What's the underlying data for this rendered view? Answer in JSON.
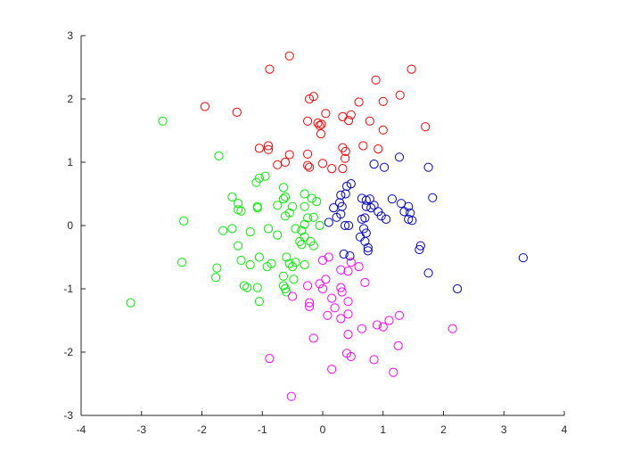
{
  "chart_data": {
    "type": "scatter",
    "title": "",
    "xlabel": "",
    "ylabel": "",
    "xlim": [
      -4,
      4
    ],
    "ylim": [
      -3,
      3
    ],
    "xticks": [
      "-4",
      "-3",
      "-2",
      "-1",
      "0",
      "1",
      "2",
      "3",
      "4"
    ],
    "yticks": [
      "-3",
      "-2",
      "-1",
      "0",
      "1",
      "2",
      "3"
    ],
    "grid": false,
    "legend": "none",
    "marker": "open-circle",
    "series": [
      {
        "color": "#ff0000",
        "points": [
          [
            -0.55,
            2.68
          ],
          [
            -0.88,
            2.47
          ],
          [
            -1.95,
            1.88
          ],
          [
            -1.42,
            1.79
          ],
          [
            -0.15,
            2.04
          ],
          [
            -0.22,
            2.0
          ],
          [
            -0.25,
            1.65
          ],
          [
            -0.08,
            1.62
          ],
          [
            -0.05,
            1.58
          ],
          [
            -0.02,
            1.6
          ],
          [
            -0.03,
            1.45
          ],
          [
            0.05,
            1.77
          ],
          [
            0.33,
            1.72
          ],
          [
            0.47,
            1.75
          ],
          [
            0.43,
            1.66
          ],
          [
            0.6,
            1.95
          ],
          [
            0.78,
            1.65
          ],
          [
            0.88,
            2.3
          ],
          [
            1.0,
            1.96
          ],
          [
            1.28,
            2.06
          ],
          [
            1.47,
            2.47
          ],
          [
            1.7,
            1.56
          ],
          [
            1.0,
            1.51
          ],
          [
            0.92,
            1.21
          ],
          [
            0.67,
            1.26
          ],
          [
            0.33,
            1.23
          ],
          [
            0.38,
            1.17
          ],
          [
            0.37,
            1.06
          ],
          [
            0.33,
            0.9
          ],
          [
            0.15,
            0.9
          ],
          [
            0.0,
            0.98
          ],
          [
            -0.25,
            1.13
          ],
          [
            -0.25,
            0.95
          ],
          [
            -0.22,
            0.92
          ],
          [
            -0.55,
            1.12
          ],
          [
            -0.62,
            1.0
          ],
          [
            -0.75,
            0.96
          ],
          [
            -0.9,
            1.26
          ],
          [
            -0.9,
            1.2
          ],
          [
            -1.05,
            1.22
          ]
        ]
      },
      {
        "color": "#00ee00",
        "points": [
          [
            -2.65,
            1.65
          ],
          [
            -1.72,
            1.1
          ],
          [
            -1.05,
            0.75
          ],
          [
            -1.1,
            0.68
          ],
          [
            -0.95,
            0.78
          ],
          [
            -0.65,
            0.6
          ],
          [
            -0.62,
            0.45
          ],
          [
            -0.65,
            0.42
          ],
          [
            -0.3,
            0.5
          ],
          [
            -0.18,
            0.43
          ],
          [
            -0.1,
            0.38
          ],
          [
            -1.5,
            0.45
          ],
          [
            -1.4,
            0.35
          ],
          [
            -1.4,
            0.25
          ],
          [
            -1.35,
            0.23
          ],
          [
            -1.08,
            0.3
          ],
          [
            -1.08,
            0.28
          ],
          [
            -0.75,
            0.32
          ],
          [
            -0.62,
            0.15
          ],
          [
            -0.55,
            0.2
          ],
          [
            -0.5,
            0.3
          ],
          [
            -0.3,
            0.3
          ],
          [
            -0.25,
            0.12
          ],
          [
            -0.15,
            0.13
          ],
          [
            -0.3,
            0.02
          ],
          [
            -0.05,
            0.0
          ],
          [
            -2.3,
            0.07
          ],
          [
            -1.65,
            -0.08
          ],
          [
            -1.5,
            -0.05
          ],
          [
            -1.2,
            -0.1
          ],
          [
            -0.9,
            -0.05
          ],
          [
            -0.75,
            -0.15
          ],
          [
            -0.45,
            -0.05
          ],
          [
            -0.35,
            -0.08
          ],
          [
            -0.3,
            -0.18
          ],
          [
            -0.38,
            -0.25
          ],
          [
            -0.35,
            -0.3
          ],
          [
            -0.2,
            -0.25
          ],
          [
            -0.15,
            -0.32
          ],
          [
            -1.4,
            -0.32
          ],
          [
            -1.05,
            -0.5
          ],
          [
            -1.35,
            -0.55
          ],
          [
            -1.2,
            -0.62
          ],
          [
            -0.92,
            -0.65
          ],
          [
            -0.85,
            -0.6
          ],
          [
            -0.6,
            -0.5
          ],
          [
            -0.55,
            -0.6
          ],
          [
            -0.5,
            -0.65
          ],
          [
            -0.45,
            -0.58
          ],
          [
            -0.3,
            -0.62
          ],
          [
            -2.33,
            -0.58
          ],
          [
            -1.75,
            -0.67
          ],
          [
            -1.77,
            -0.82
          ],
          [
            -0.65,
            -0.8
          ],
          [
            -0.48,
            -0.85
          ],
          [
            -0.65,
            -0.95
          ],
          [
            -0.62,
            -1.0
          ],
          [
            -0.6,
            -1.05
          ],
          [
            -1.3,
            -0.95
          ],
          [
            -1.25,
            -0.98
          ],
          [
            -1.08,
            -0.98
          ],
          [
            -1.05,
            -1.2
          ],
          [
            -3.18,
            -1.22
          ]
        ]
      },
      {
        "color": "#0000cc",
        "points": [
          [
            0.85,
            0.97
          ],
          [
            1.02,
            0.92
          ],
          [
            1.27,
            1.08
          ],
          [
            1.75,
            0.92
          ],
          [
            1.82,
            0.44
          ],
          [
            0.47,
            0.66
          ],
          [
            0.4,
            0.62
          ],
          [
            0.38,
            0.5
          ],
          [
            0.3,
            0.48
          ],
          [
            0.28,
            0.36
          ],
          [
            0.32,
            0.3
          ],
          [
            0.18,
            0.28
          ],
          [
            0.3,
            0.18
          ],
          [
            0.23,
            0.13
          ],
          [
            0.1,
            0.05
          ],
          [
            0.37,
            0.0
          ],
          [
            0.43,
            0.0
          ],
          [
            0.65,
            0.43
          ],
          [
            0.72,
            0.4
          ],
          [
            0.78,
            0.42
          ],
          [
            0.8,
            0.28
          ],
          [
            0.72,
            0.3
          ],
          [
            0.85,
            0.32
          ],
          [
            0.92,
            0.22
          ],
          [
            0.97,
            0.15
          ],
          [
            1.05,
            0.1
          ],
          [
            1.15,
            0.42
          ],
          [
            1.3,
            0.35
          ],
          [
            1.35,
            0.22
          ],
          [
            1.42,
            0.3
          ],
          [
            1.45,
            0.2
          ],
          [
            1.42,
            0.1
          ],
          [
            1.48,
            0.08
          ],
          [
            0.7,
            0.12
          ],
          [
            0.65,
            0.1
          ],
          [
            0.68,
            -0.05
          ],
          [
            0.62,
            -0.18
          ],
          [
            0.72,
            -0.12
          ],
          [
            0.7,
            -0.25
          ],
          [
            0.75,
            -0.35
          ],
          [
            0.75,
            -0.4
          ],
          [
            0.35,
            -0.45
          ],
          [
            0.45,
            -0.48
          ],
          [
            1.62,
            -0.32
          ],
          [
            1.6,
            -0.38
          ],
          [
            1.75,
            -0.75
          ],
          [
            2.23,
            -1.0
          ],
          [
            3.32,
            -0.51
          ]
        ]
      },
      {
        "color": "#ff00ff",
        "points": [
          [
            0.0,
            -0.55
          ],
          [
            0.1,
            -0.5
          ],
          [
            0.47,
            -0.58
          ],
          [
            0.6,
            -0.65
          ],
          [
            0.42,
            -0.72
          ],
          [
            0.3,
            -0.7
          ],
          [
            0.05,
            -0.85
          ],
          [
            -0.05,
            -0.92
          ],
          [
            -0.25,
            -0.95
          ],
          [
            0.0,
            -1.0
          ],
          [
            0.3,
            -0.98
          ],
          [
            0.32,
            -1.05
          ],
          [
            0.7,
            -0.9
          ],
          [
            0.42,
            -1.2
          ],
          [
            0.15,
            -1.15
          ],
          [
            0.2,
            -1.3
          ],
          [
            -0.22,
            -1.22
          ],
          [
            -0.22,
            -1.28
          ],
          [
            -0.5,
            -1.12
          ],
          [
            0.08,
            -1.42
          ],
          [
            0.3,
            -1.47
          ],
          [
            0.42,
            -1.4
          ],
          [
            0.42,
            -1.72
          ],
          [
            0.65,
            -1.63
          ],
          [
            0.9,
            -1.57
          ],
          [
            1.0,
            -1.6
          ],
          [
            1.1,
            -1.5
          ],
          [
            1.27,
            -1.42
          ],
          [
            2.15,
            -1.63
          ],
          [
            1.25,
            -1.9
          ],
          [
            -0.15,
            -1.78
          ],
          [
            0.85,
            -2.12
          ],
          [
            0.4,
            -2.02
          ],
          [
            0.47,
            -2.07
          ],
          [
            0.15,
            -2.27
          ],
          [
            1.17,
            -2.32
          ],
          [
            -0.88,
            -2.1
          ],
          [
            -0.52,
            -2.7
          ]
        ]
      }
    ]
  }
}
